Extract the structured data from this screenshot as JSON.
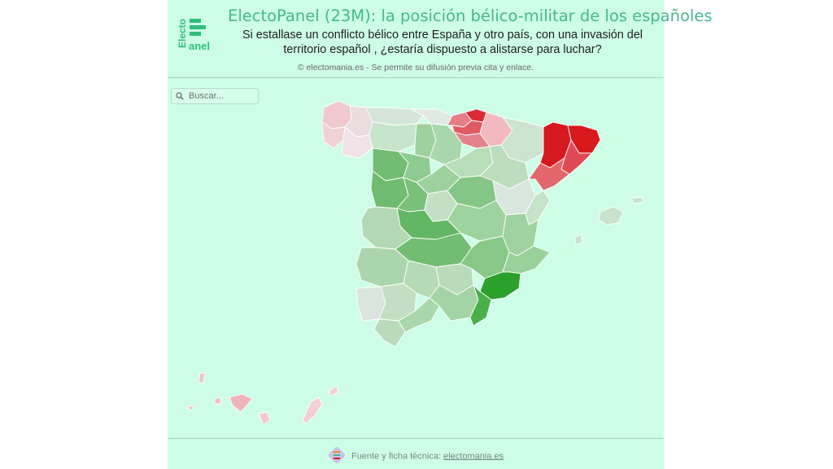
{
  "header": {
    "logo_vertical": "Electo",
    "logo_word": "anel",
    "title": "ElectoPanel (23M): la posición bélico-militar de los españoles",
    "subtitle": "Si estallase un conflicto bélico entre España y otro país, con una invasión del territorio español , ¿estaría dispuesto a alistarse para luchar?",
    "copyright": "© electomania.es - Se permite su difusión previa cita y enlace."
  },
  "search": {
    "placeholder": "Buscar..."
  },
  "colors": {
    "background": "#cdfde6",
    "accent": "#45b98a",
    "strong_red": "#d7191c",
    "strong_green": "#2ca02c",
    "neutral": "#dde6e0"
  },
  "legend_scale": "red = less willing, green = more willing",
  "footer": {
    "label": "Fuente y ficha técnica:",
    "link": "electomania.es"
  }
}
